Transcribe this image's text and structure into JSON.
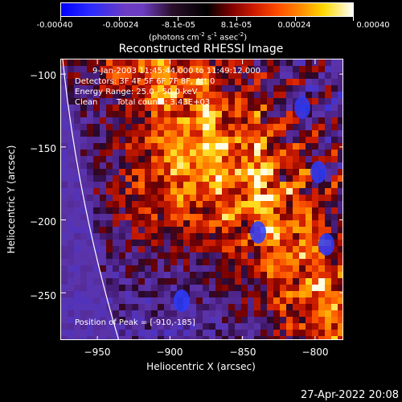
{
  "colorbar": {
    "tick_labels": [
      "-0.00040",
      "-0.00024",
      "-8.1e-05",
      "8.1e-05",
      "0.00024",
      "0.00040"
    ],
    "units_main": "(photons cm",
    "units_exp1": "-2",
    "units_mid1": " s",
    "units_exp2": "-1",
    "units_mid2": " asec",
    "units_exp3": "-2",
    "units_end": ")"
  },
  "title": "Reconstructed RHESSI Image",
  "info": {
    "time_range": "9-Jan-2003 11:45:44.000 to 11:49:12.000",
    "detectors": "Detectors: 3F 4F 5F 6F 7F 8F, Att 0",
    "energy": "Energy Range: 25.0 - 50.0 keV",
    "method": "Clean",
    "counts": "Total counts: 3.43E+03",
    "peak": "Position of Peak = [-910,-185]"
  },
  "chart_data": {
    "type": "heatmap",
    "title": "Reconstructed RHESSI Image",
    "xlabel": "Heliocentric X (arcsec)",
    "ylabel": "Heliocentric Y (arcsec)",
    "xlim": [
      -975,
      -780
    ],
    "ylim": [
      -283,
      -90
    ],
    "x_ticks": [
      -950,
      -900,
      -850,
      -800
    ],
    "y_ticks": [
      -100,
      -150,
      -200,
      -250
    ],
    "x_tick_labels": [
      "−950",
      "−900",
      "−850",
      "−800"
    ],
    "y_tick_labels": [
      "−100",
      "−150",
      "−200",
      "−250"
    ],
    "colorbar_range": [
      -0.0004,
      0.0004
    ],
    "peak_position": [
      -910,
      -185
    ],
    "colors": {
      "negative_max": "#0000ff",
      "background": "#4c1f8a",
      "zero": "#000000",
      "low_positive": "#cc1a00",
      "mid_positive": "#ff8a00",
      "high_positive": "#ffd900",
      "max": "#ffffff"
    }
  },
  "timestamp": "27-Apr-2022 20:08"
}
